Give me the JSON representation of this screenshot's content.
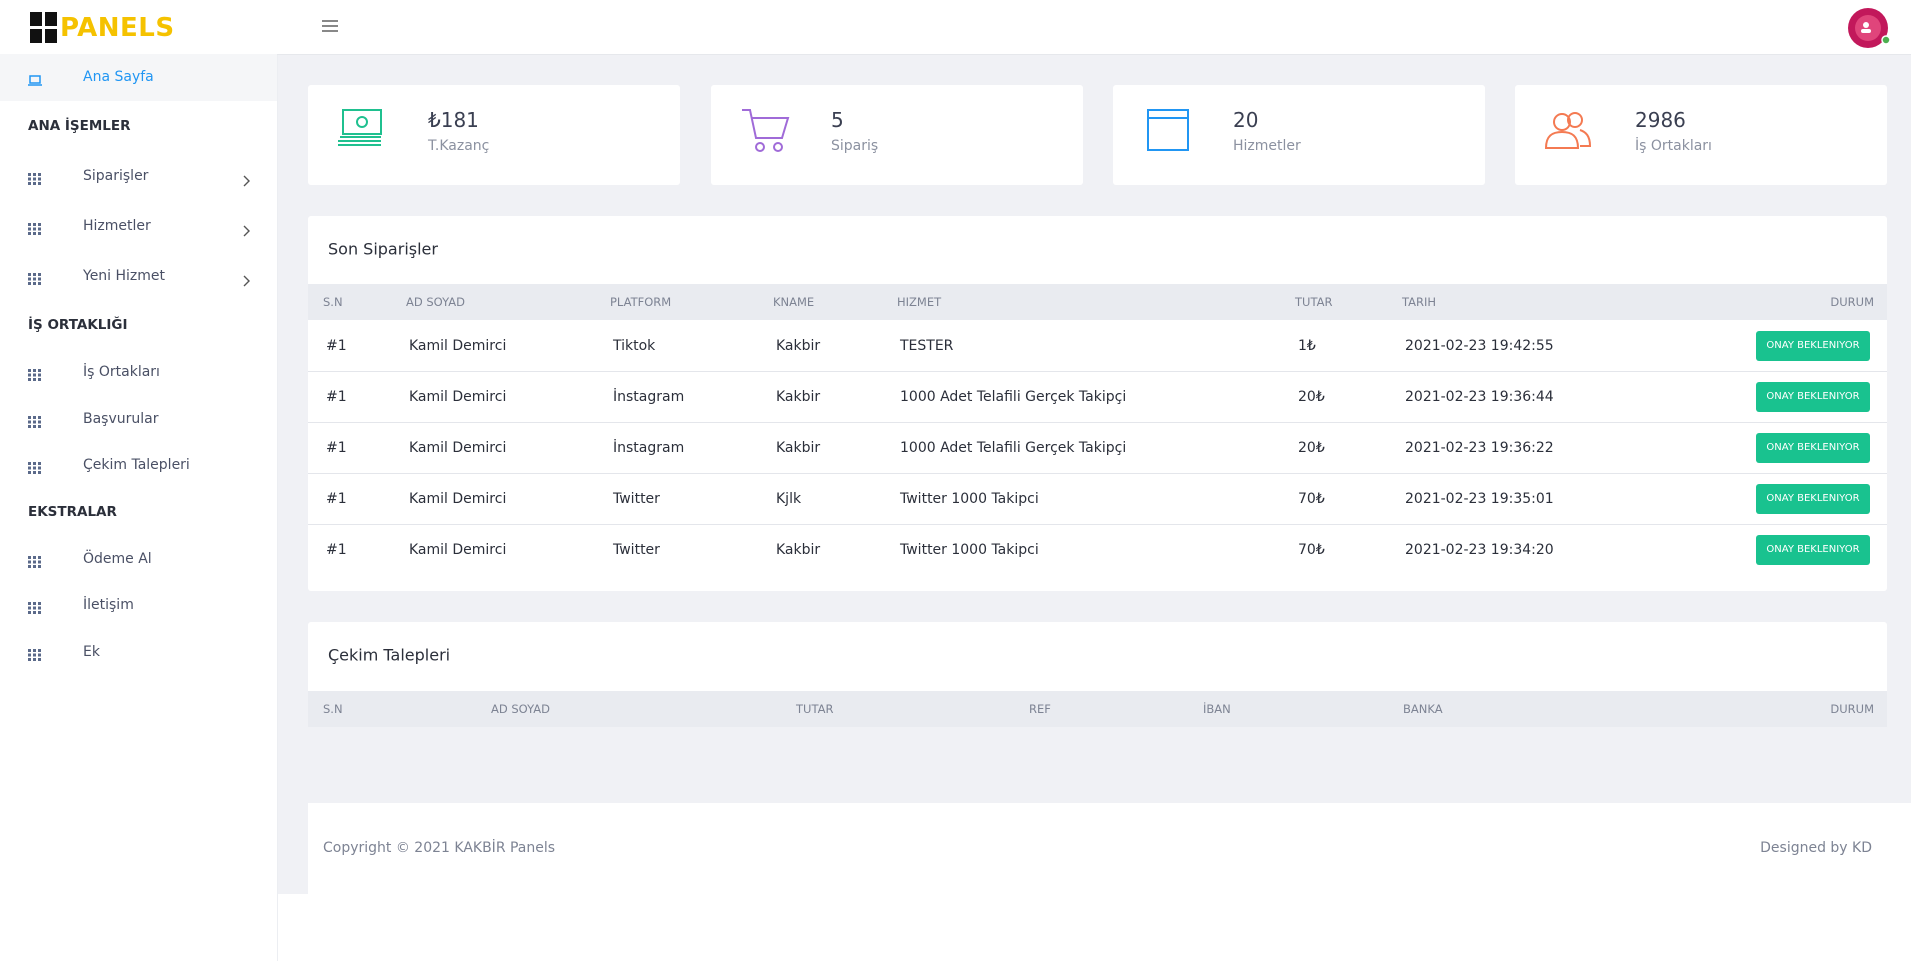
{
  "header": {
    "brand": "PANELS"
  },
  "sidebar": {
    "active": "Ana Sayfa",
    "sections": [
      {
        "title": "ANA İŞEMLER",
        "items": [
          "Siparişler",
          "Hizmetler",
          "Yeni Hizmet"
        ]
      },
      {
        "title": "İŞ ORTAKLIĞI",
        "items": [
          "İş Ortakları",
          "Başvurular",
          "Çekim Talepleri"
        ]
      },
      {
        "title": "EKSTRALAR",
        "items": [
          "Ödeme Al",
          "İletişim",
          "Ek"
        ]
      }
    ]
  },
  "stats": [
    {
      "value": "₺181",
      "label": "T.Kazanç"
    },
    {
      "value": "5",
      "label": "Sipariş"
    },
    {
      "value": "20",
      "label": "Hizmetler"
    },
    {
      "value": "2986",
      "label": "İş Ortakları"
    }
  ],
  "orders": {
    "title": "Son Siparişler",
    "columns": [
      "S.N",
      "AD SOYAD",
      "PLATFORM",
      "KNAME",
      "HIZMET",
      "TUTAR",
      "TARIH",
      "DURUM"
    ],
    "rows": [
      [
        "#1",
        "Kamil Demirci",
        "Tiktok",
        "Kakbir",
        "TESTER",
        "1₺",
        "2021-02-23 19:42:55",
        "ONAY BEKLENIYOR"
      ],
      [
        "#1",
        "Kamil Demirci",
        "İnstagram",
        "Kakbir",
        "1000 Adet Telafili Gerçek Takipçi",
        "20₺",
        "2021-02-23 19:36:44",
        "ONAY BEKLENIYOR"
      ],
      [
        "#1",
        "Kamil Demirci",
        "İnstagram",
        "Kakbir",
        "1000 Adet Telafili Gerçek Takipçi",
        "20₺",
        "2021-02-23 19:36:22",
        "ONAY BEKLENIYOR"
      ],
      [
        "#1",
        "Kamil Demirci",
        "Twitter",
        "Kjlk",
        "Twitter 1000 Takipci",
        "70₺",
        "2021-02-23 19:35:01",
        "ONAY BEKLENIYOR"
      ],
      [
        "#1",
        "Kamil Demirci",
        "Twitter",
        "Kakbir",
        "Twitter 1000 Takipci",
        "70₺",
        "2021-02-23 19:34:20",
        "ONAY BEKLENIYOR"
      ]
    ]
  },
  "withdrawals": {
    "title": "Çekim Talepleri",
    "columns": [
      "S.N",
      "AD SOYAD",
      "TUTAR",
      "REF",
      "İBAN",
      "BANKA",
      "DURUM"
    ]
  },
  "footer": {
    "copyright": "Copyright © 2021 KAKBİR Panels",
    "credit": "Designed by KD"
  }
}
